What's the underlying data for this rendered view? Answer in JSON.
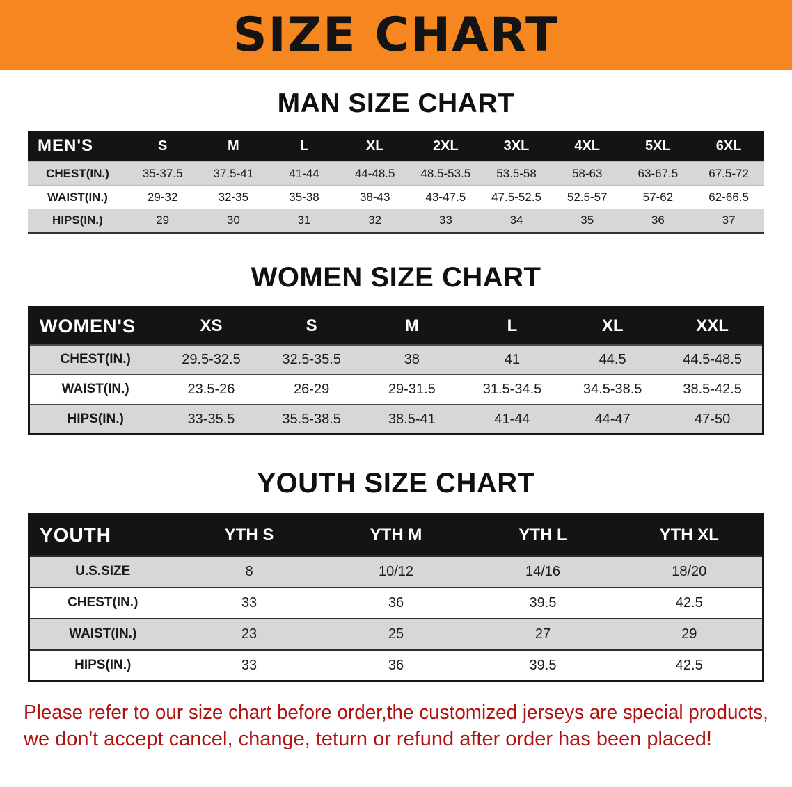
{
  "banner": {
    "title": "SIZE CHART"
  },
  "sections": [
    {
      "id": "men",
      "heading": "MAN SIZE CHART",
      "table": {
        "header": [
          "MEN'S",
          "S",
          "M",
          "L",
          "XL",
          "2XL",
          "3XL",
          "4XL",
          "5XL",
          "6XL"
        ],
        "rows": [
          [
            "CHEST(IN.)",
            "35-37.5",
            "37.5-41",
            "41-44",
            "44-48.5",
            "48.5-53.5",
            "53.5-58",
            "58-63",
            "63-67.5",
            "67.5-72"
          ],
          [
            "WAIST(IN.)",
            "29-32",
            "32-35",
            "35-38",
            "38-43",
            "43-47.5",
            "47.5-52.5",
            "52.5-57",
            "57-62",
            "62-66.5"
          ],
          [
            "HIPS(IN.)",
            "29",
            "30",
            "31",
            "32",
            "33",
            "34",
            "35",
            "36",
            "37"
          ]
        ]
      }
    },
    {
      "id": "women",
      "heading": "WOMEN SIZE CHART",
      "table": {
        "header": [
          "WOMEN'S",
          "XS",
          "S",
          "M",
          "L",
          "XL",
          "XXL"
        ],
        "rows": [
          [
            "CHEST(IN.)",
            "29.5-32.5",
            "32.5-35.5",
            "38",
            "41",
            "44.5",
            "44.5-48.5"
          ],
          [
            "WAIST(IN.)",
            "23.5-26",
            "26-29",
            "29-31.5",
            "31.5-34.5",
            "34.5-38.5",
            "38.5-42.5"
          ],
          [
            "HIPS(IN.)",
            "33-35.5",
            "35.5-38.5",
            "38.5-41",
            "41-44",
            "44-47",
            "47-50"
          ]
        ]
      }
    },
    {
      "id": "youth",
      "heading": "YOUTH SIZE CHART",
      "table": {
        "header": [
          "YOUTH",
          "YTH S",
          "YTH M",
          "YTH L",
          "YTH XL"
        ],
        "rows": [
          [
            "U.S.SIZE",
            "8",
            "10/12",
            "14/16",
            "18/20"
          ],
          [
            "CHEST(IN.)",
            "33",
            "36",
            "39.5",
            "42.5"
          ],
          [
            "WAIST(IN.)",
            "23",
            "25",
            "27",
            "29"
          ],
          [
            "HIPS(IN.)",
            "33",
            "36",
            "39.5",
            "42.5"
          ]
        ]
      }
    }
  ],
  "disclaimer": {
    "lines": [
      "Please refer to our size chart before order,the customized jerseys are special products,",
      "we don't accept cancel, change, teturn or refund after order has been placed!"
    ]
  },
  "colors": {
    "banner-bg": "#F6861F",
    "banner-text": "#141414",
    "table-header-bg": "#141414",
    "table-header-text": "#ffffff",
    "row-stripe": "#d7d7d7",
    "disclaimer-text": "#b01111",
    "body-text": "#1a1a1a"
  }
}
